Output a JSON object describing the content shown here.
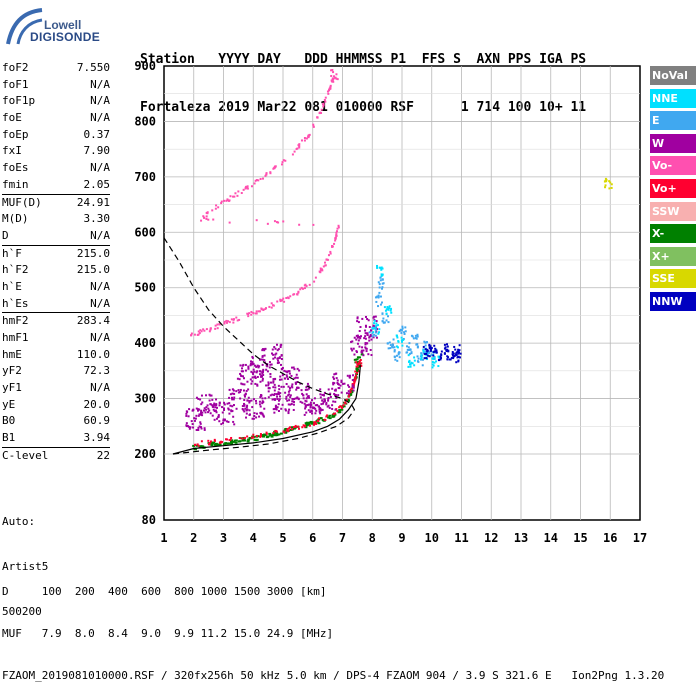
{
  "logo": {
    "line1": "Lowell",
    "line2": "DIGISONDE"
  },
  "header": {
    "line1": "Station   YYYY DAY   DDD HHMMSS P1  FFS S  AXN PPS IGA PS",
    "line2": "Fortaleza 2019 Mar22 081 010000 RSF      1 714 100 10+ 11"
  },
  "params": [
    {
      "k": "foF2",
      "v": "7.550"
    },
    {
      "k": "foF1",
      "v": "N/A"
    },
    {
      "k": "foF1p",
      "v": "N/A"
    },
    {
      "k": "foE",
      "v": "N/A"
    },
    {
      "k": "foEp",
      "v": "0.37"
    },
    {
      "k": "fxI",
      "v": "7.90"
    },
    {
      "k": "foEs",
      "v": "N/A"
    },
    {
      "k": "fmin",
      "v": "2.05"
    },
    {
      "k": "MUF(D)",
      "v": "24.91",
      "sep": true
    },
    {
      "k": "M(D)",
      "v": "3.30"
    },
    {
      "k": "D",
      "v": "N/A"
    },
    {
      "k": "h`F",
      "v": "215.0",
      "sep": true
    },
    {
      "k": "h`F2",
      "v": "215.0"
    },
    {
      "k": "h`E",
      "v": "N/A"
    },
    {
      "k": "h`Es",
      "v": "N/A"
    },
    {
      "k": "hmF2",
      "v": "283.4",
      "sep": true
    },
    {
      "k": "hmF1",
      "v": "N/A"
    },
    {
      "k": "hmE",
      "v": "110.0"
    },
    {
      "k": "yF2",
      "v": "72.3"
    },
    {
      "k": "yF1",
      "v": "N/A"
    },
    {
      "k": "yE",
      "v": "20.0"
    },
    {
      "k": "B0",
      "v": "60.9"
    },
    {
      "k": "B1",
      "v": "3.94"
    },
    {
      "k": "C-level",
      "v": "22",
      "sep": true
    }
  ],
  "auto": {
    "line1": "Auto:",
    "line2": "Artist5",
    "line3": "500200"
  },
  "footer": {
    "line1": "D     100  200  400  600  800 1000 1500 3000 [km]",
    "line2": "MUF   7.9  8.0  8.4  9.0  9.9 11.2 15.0 24.9 [MHz]",
    "line3": "FZAOM_2019081010000.RSF / 320fx256h 50 kHz 5.0 km / DPS-4 FZAOM 904 / 3.9 S 321.6 E   Ion2Png 1.3.20"
  },
  "legend": [
    {
      "label": "NoVal",
      "color": "#808080"
    },
    {
      "label": "NNE",
      "color": "#00e0ff"
    },
    {
      "label": "E",
      "color": "#40a8f0"
    },
    {
      "label": "W",
      "color": "#a000a0"
    },
    {
      "label": "Vo-",
      "color": "#ff50b0"
    },
    {
      "label": "Vo+",
      "color": "#ff0030"
    },
    {
      "label": "SSW",
      "color": "#f8b0b0"
    },
    {
      "label": "X-",
      "color": "#008000"
    },
    {
      "label": "X+",
      "color": "#80c060"
    },
    {
      "label": "SSE",
      "color": "#d8d800"
    },
    {
      "label": "NNW",
      "color": "#0000c0"
    }
  ],
  "chart_data": {
    "type": "scatter",
    "title": "",
    "xlabel": "",
    "ylabel": "",
    "xlim": [
      1,
      17
    ],
    "ylim": [
      80,
      900
    ],
    "x_ticks": [
      1,
      2,
      3,
      4,
      5,
      6,
      7,
      8,
      9,
      10,
      11,
      12,
      13,
      14,
      15,
      16,
      17
    ],
    "y_ticks": [
      80,
      200,
      300,
      400,
      500,
      600,
      700,
      800,
      900
    ],
    "grid": true,
    "series": [
      {
        "name": "X-",
        "color": "#008000",
        "points": [
          [
            1.9,
            213
          ],
          [
            2.5,
            218
          ],
          [
            3,
            222
          ],
          [
            3.5,
            226
          ],
          [
            4,
            230
          ],
          [
            4.5,
            236
          ],
          [
            5,
            243
          ],
          [
            5.5,
            250
          ],
          [
            6,
            258
          ],
          [
            6.5,
            268
          ],
          [
            6.9,
            282
          ],
          [
            7.2,
            305
          ],
          [
            7.4,
            340
          ],
          [
            7.5,
            372
          ]
        ]
      },
      {
        "name": "Vo+",
        "color": "#ff0030",
        "points": [
          [
            2.0,
            220
          ],
          [
            2.8,
            224
          ],
          [
            3.6,
            230
          ],
          [
            4.4,
            238
          ],
          [
            5.2,
            246
          ],
          [
            6.0,
            258
          ],
          [
            6.6,
            272
          ],
          [
            7.1,
            296
          ],
          [
            7.35,
            330
          ],
          [
            7.5,
            360
          ]
        ]
      },
      {
        "name": "W",
        "color": "#a000a0",
        "points": [
          [
            2.0,
            265
          ],
          [
            2.4,
            290
          ],
          [
            3.0,
            275
          ],
          [
            3.5,
            300
          ],
          [
            4.0,
            285
          ],
          [
            4.5,
            320
          ],
          [
            5.0,
            295
          ],
          [
            5.5,
            310
          ],
          [
            6.0,
            290
          ],
          [
            4.2,
            360
          ],
          [
            4.6,
            380
          ],
          [
            5.2,
            340
          ],
          [
            3.8,
            345
          ],
          [
            6.5,
            300
          ],
          [
            7.0,
            330
          ],
          [
            7.6,
            400
          ],
          [
            7.8,
            430
          ]
        ]
      },
      {
        "name": "Vo-",
        "color": "#ff50b0",
        "points": [
          [
            1.8,
            415
          ],
          [
            2.4,
            425
          ],
          [
            3.0,
            437
          ],
          [
            3.6,
            448
          ],
          [
            4.2,
            460
          ],
          [
            4.8,
            475
          ],
          [
            5.4,
            490
          ],
          [
            6.0,
            515
          ],
          [
            6.4,
            545
          ],
          [
            6.7,
            585
          ],
          [
            6.85,
            615
          ],
          [
            2.2,
            625
          ],
          [
            2.8,
            650
          ],
          [
            3.4,
            670
          ],
          [
            4.0,
            690
          ],
          [
            4.6,
            712
          ],
          [
            5.2,
            740
          ],
          [
            5.8,
            775
          ],
          [
            6.2,
            815
          ],
          [
            6.5,
            855
          ],
          [
            6.7,
            885
          ]
        ]
      },
      {
        "name": "E",
        "color": "#40a8f0",
        "points": [
          [
            8.0,
            420
          ],
          [
            8.2,
            480
          ],
          [
            8.4,
            450
          ],
          [
            8.6,
            400
          ],
          [
            8.8,
            380
          ],
          [
            9.0,
            420
          ],
          [
            9.2,
            390
          ],
          [
            9.4,
            405
          ],
          [
            9.6,
            372
          ],
          [
            9.8,
            395
          ],
          [
            10.0,
            380
          ],
          [
            8.3,
            510
          ]
        ]
      },
      {
        "name": "NNE",
        "color": "#00e0ff",
        "points": [
          [
            8.1,
            430
          ],
          [
            8.5,
            465
          ],
          [
            8.9,
            405
          ],
          [
            9.3,
            368
          ],
          [
            9.7,
            385
          ],
          [
            10.1,
            370
          ],
          [
            8.2,
            530
          ]
        ]
      },
      {
        "name": "NNW",
        "color": "#0000c0",
        "points": [
          [
            9.8,
            385
          ],
          [
            10.0,
            390
          ],
          [
            10.2,
            382
          ],
          [
            10.4,
            388
          ],
          [
            10.6,
            380
          ],
          [
            10.8,
            386
          ],
          [
            10.9,
            378
          ]
        ]
      },
      {
        "name": "SSE",
        "color": "#d8d800",
        "points": [
          [
            15.9,
            688
          ]
        ]
      }
    ],
    "curves": [
      {
        "name": "dashed",
        "style": "dashed",
        "points": [
          [
            1.0,
            590
          ],
          [
            1.5,
            548
          ],
          [
            2,
            500
          ],
          [
            2.5,
            460
          ],
          [
            3,
            430
          ],
          [
            3.5,
            405
          ],
          [
            4,
            380
          ],
          [
            4.5,
            360
          ],
          [
            5,
            345
          ],
          [
            5.5,
            330
          ],
          [
            6,
            318
          ],
          [
            6.5,
            308
          ],
          [
            7,
            300
          ],
          [
            7.3,
            290
          ],
          [
            7.4,
            280
          ],
          [
            7.2,
            265
          ],
          [
            6.8,
            250
          ],
          [
            6.2,
            238
          ],
          [
            5.5,
            228
          ],
          [
            4.5,
            218
          ],
          [
            3.5,
            212
          ],
          [
            2.5,
            207
          ],
          [
            1.3,
            200
          ]
        ]
      },
      {
        "name": "solid",
        "style": "solid",
        "points": [
          [
            1.3,
            200
          ],
          [
            2,
            210
          ],
          [
            3,
            215
          ],
          [
            4,
            220
          ],
          [
            5,
            228
          ],
          [
            6,
            240
          ],
          [
            6.5,
            250
          ],
          [
            6.9,
            263
          ],
          [
            7.2,
            280
          ],
          [
            7.45,
            300
          ],
          [
            7.55,
            330
          ],
          [
            7.6,
            360
          ]
        ]
      }
    ]
  }
}
